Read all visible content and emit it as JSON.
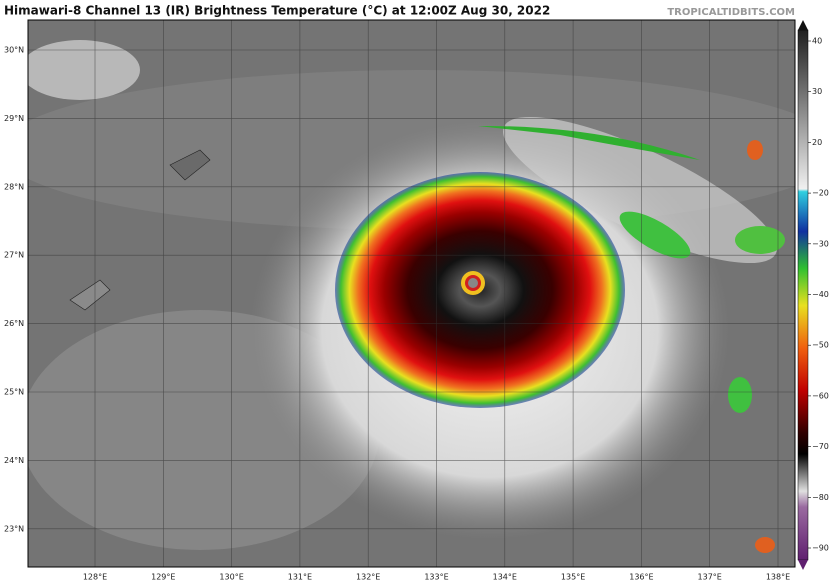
{
  "header": {
    "title": "Himawari-8 Channel 13 (IR) Brightness Temperature (°C) at 12:00Z Aug 30, 2022",
    "source": "TROPICALTIDBITS.COM"
  },
  "map": {
    "lat_labels": [
      "30°N",
      "29°N",
      "28°N",
      "27°N",
      "26°N",
      "25°N",
      "24°N",
      "23°N"
    ],
    "lon_labels": [
      "128°E",
      "129°E",
      "130°E",
      "131°E",
      "132°E",
      "133°E",
      "134°E",
      "135°E",
      "136°E",
      "137°E",
      "138°E"
    ]
  },
  "colorbar": {
    "ticks": [
      "40",
      "30",
      "20",
      "−20",
      "−30",
      "−40",
      "−50",
      "−60",
      "−70",
      "−80",
      "−90"
    ]
  }
}
